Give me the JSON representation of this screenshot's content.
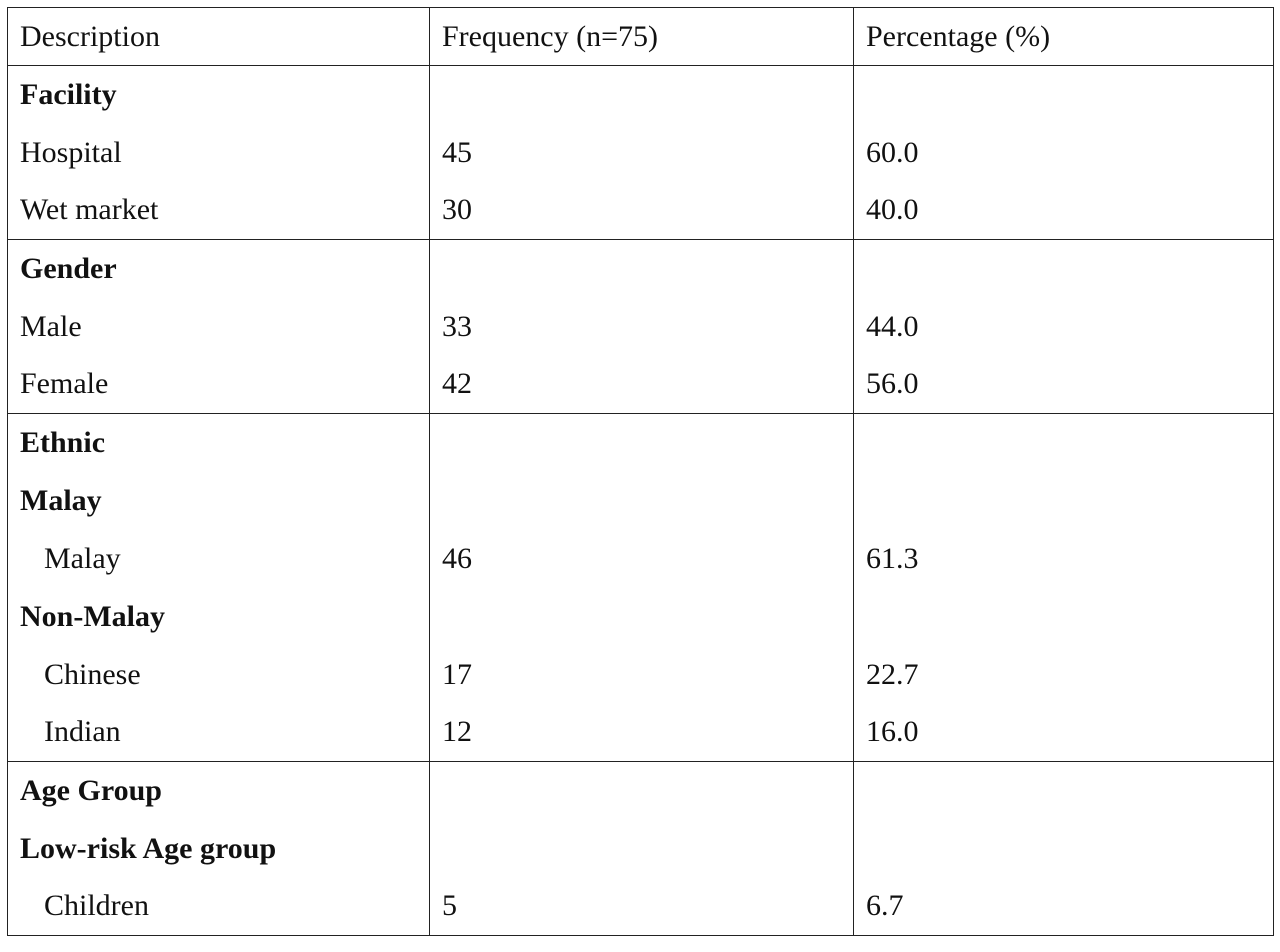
{
  "table": {
    "headers": [
      "Description",
      "Frequency (n=75)",
      "Percentage (%)"
    ],
    "rows": [
      {
        "label": "Facility",
        "freq": "",
        "pct": "",
        "bold": true,
        "indent": false,
        "group_start": true
      },
      {
        "label": "Hospital",
        "freq": "45",
        "pct": "60.0",
        "bold": false,
        "indent": false,
        "group_start": false
      },
      {
        "label": "Wet market",
        "freq": "30",
        "pct": "40.0",
        "bold": false,
        "indent": false,
        "group_start": false
      },
      {
        "label": "Gender",
        "freq": "",
        "pct": "",
        "bold": true,
        "indent": false,
        "group_start": true
      },
      {
        "label": "Male",
        "freq": "33",
        "pct": "44.0",
        "bold": false,
        "indent": false,
        "group_start": false
      },
      {
        "label": "Female",
        "freq": "42",
        "pct": "56.0",
        "bold": false,
        "indent": false,
        "group_start": false
      },
      {
        "label": "Ethnic",
        "freq": "",
        "pct": "",
        "bold": true,
        "indent": false,
        "group_start": true
      },
      {
        "label": "Malay",
        "freq": "",
        "pct": "",
        "bold": true,
        "indent": false,
        "group_start": false
      },
      {
        "label": "Malay",
        "freq": "46",
        "pct": "61.3",
        "bold": false,
        "indent": true,
        "group_start": false
      },
      {
        "label": "Non-Malay",
        "freq": "",
        "pct": "",
        "bold": true,
        "indent": false,
        "group_start": false
      },
      {
        "label": "Chinese",
        "freq": "17",
        "pct": "22.7",
        "bold": false,
        "indent": true,
        "group_start": false
      },
      {
        "label": "Indian",
        "freq": "12",
        "pct": "16.0",
        "bold": false,
        "indent": true,
        "group_start": false
      },
      {
        "label": "Age Group",
        "freq": "",
        "pct": "",
        "bold": true,
        "indent": false,
        "group_start": true
      },
      {
        "label": "Low-risk Age group",
        "freq": "",
        "pct": "",
        "bold": true,
        "indent": false,
        "group_start": false
      },
      {
        "label": "Children",
        "freq": "5",
        "pct": "6.7",
        "bold": false,
        "indent": true,
        "group_start": false
      }
    ]
  }
}
